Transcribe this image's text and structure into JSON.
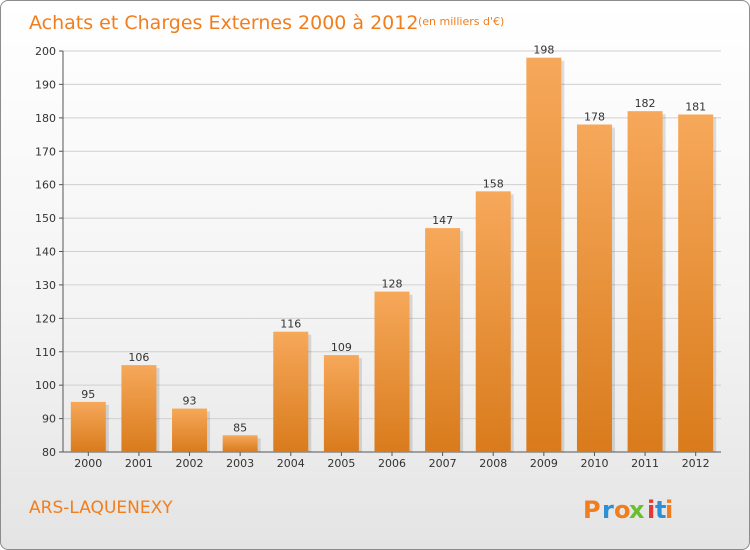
{
  "header": {
    "title": "Achats et Charges Externes 2000 à 2012",
    "unit_note": "(en milliers d'€)"
  },
  "footer": {
    "commune": "ARS-LAQUENEXY",
    "logo_text": "Proxiti"
  },
  "colors": {
    "accent": "#f07e1e",
    "bar_top": "#f6a85a",
    "bar_bottom": "#d97b1c",
    "grid": "#d0d0d0",
    "logo_letters": [
      "#f07e1e",
      "#2e8fd6",
      "#f07e1e",
      "#6abf2e",
      "#e53935",
      "#2e8fd6",
      "#f07e1e"
    ]
  },
  "chart_data": {
    "type": "bar",
    "title": "Achats et Charges Externes 2000 à 2012",
    "subtitle": "(en milliers d'€)",
    "categories": [
      "2000",
      "2001",
      "2002",
      "2003",
      "2004",
      "2005",
      "2006",
      "2007",
      "2008",
      "2009",
      "2010",
      "2011",
      "2012"
    ],
    "values": [
      95,
      106,
      93,
      85,
      116,
      109,
      128,
      147,
      158,
      198,
      178,
      182,
      181
    ],
    "ylim": [
      80,
      200
    ],
    "yticks": [
      80,
      90,
      100,
      110,
      120,
      130,
      140,
      150,
      160,
      170,
      180,
      190,
      200
    ],
    "grid": true,
    "data_labels": true
  }
}
